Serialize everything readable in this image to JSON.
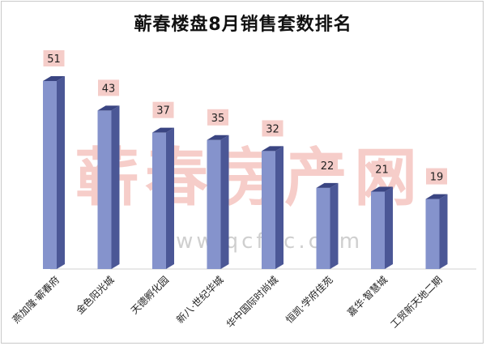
{
  "chart_data": {
    "type": "bar",
    "title": "蕲春楼盘8月销售套数排名",
    "categories": [
      "燕加隆·蕲春府",
      "金色阳光城",
      "天德孵化园",
      "新八·世纪华城",
      "华中国际时尚城",
      "恒凯·学府佳苑",
      "嘉华·智慧城",
      "工贸新天地二期"
    ],
    "values": [
      51,
      43,
      37,
      35,
      32,
      22,
      21,
      19
    ],
    "ylim": [
      0,
      55
    ],
    "grid": false,
    "legend": "none"
  },
  "watermark": {
    "text": "蕲春房产网",
    "url": "www.qcfdc.com"
  },
  "colors": {
    "bar_front": "#8593cc",
    "bar_side": "#4b5796",
    "bar_top": "#3a4582",
    "label_bg": "#f5cdc9",
    "watermark": "#f2b8b2"
  }
}
